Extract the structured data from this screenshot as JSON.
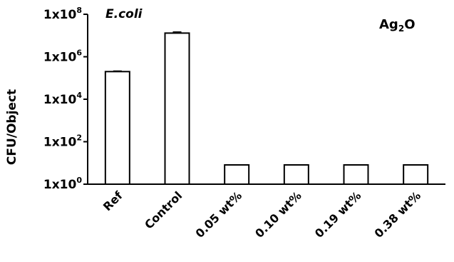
{
  "chart_data": {
    "type": "bar",
    "categories": [
      "Ref",
      "Control",
      "0.05 wt%",
      "0.10 wt%",
      "0.19 wt%",
      "0.38 wt%"
    ],
    "values": [
      200000,
      13000000,
      1,
      1,
      1,
      1
    ],
    "error": [
      10000,
      1500000,
      0,
      0,
      0,
      0
    ],
    "ylabel": "CFU/Object",
    "yscale": "log",
    "ylim": [
      1,
      100000000
    ],
    "yticks": [
      {
        "base": "1x10",
        "exp": "0"
      },
      {
        "base": "1x10",
        "exp": "2"
      },
      {
        "base": "1x10",
        "exp": "4"
      },
      {
        "base": "1x10",
        "exp": "6"
      },
      {
        "base": "1x10",
        "exp": "8"
      }
    ],
    "annotations": {
      "organism": "E.coli",
      "material_main": "Ag",
      "material_sub": "2",
      "material_tail": "O"
    },
    "grid": false,
    "bar_fill": "#ffffff",
    "bar_stroke": "#000000"
  }
}
